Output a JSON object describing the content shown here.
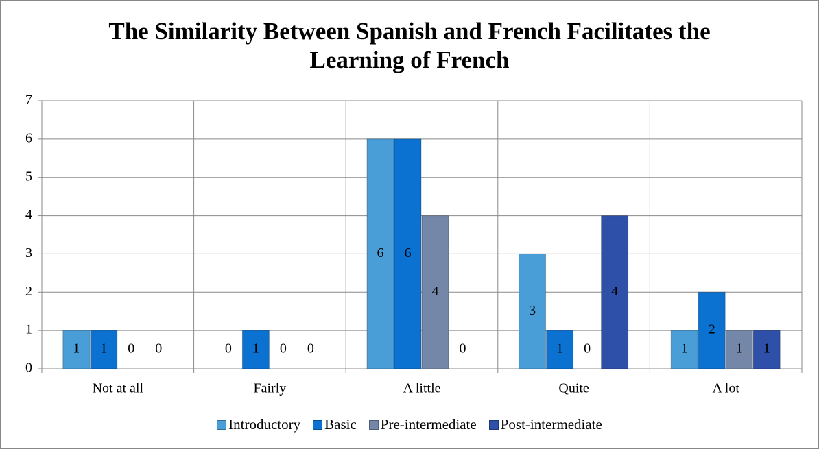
{
  "chart_data": {
    "type": "bar",
    "title": "The Similarity Between Spanish and French Facilitates the Learning of French",
    "categories": [
      "Not at all",
      "Fairly",
      "A little",
      "Quite",
      "A lot"
    ],
    "series": [
      {
        "name": "Introductory",
        "color": "#4a9ed8",
        "values": [
          1,
          0,
          6,
          3,
          1
        ]
      },
      {
        "name": "Basic",
        "color": "#0b72d1",
        "values": [
          1,
          1,
          6,
          1,
          2
        ]
      },
      {
        "name": "Pre-intermediate",
        "color": "#7587a8",
        "values": [
          0,
          0,
          4,
          0,
          1
        ]
      },
      {
        "name": "Post-intermediate",
        "color": "#2e50a8",
        "values": [
          0,
          0,
          0,
          4,
          1
        ]
      }
    ],
    "ylim": [
      0,
      7
    ],
    "yticks": [
      0,
      1,
      2,
      3,
      4,
      5,
      6,
      7
    ],
    "grid": true,
    "legend": "bottom"
  }
}
